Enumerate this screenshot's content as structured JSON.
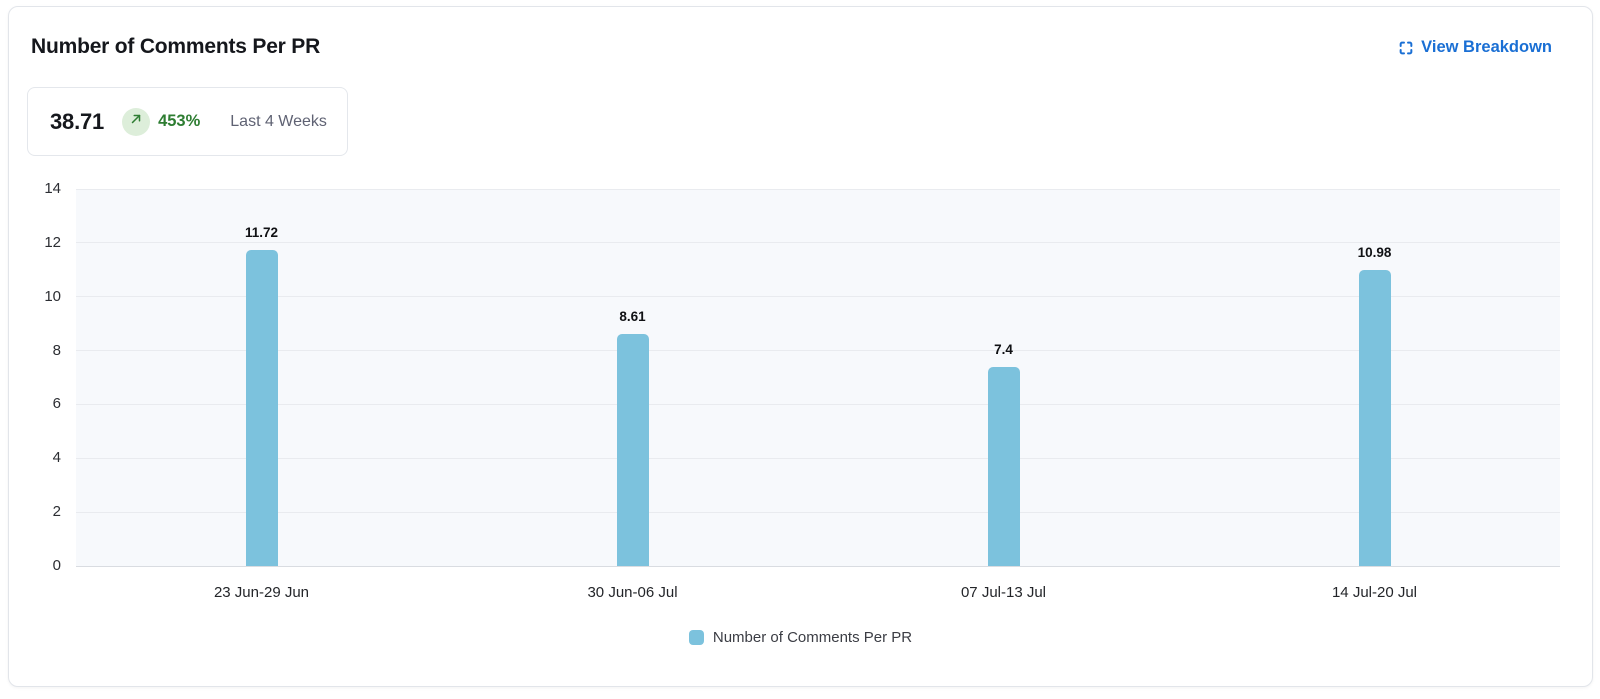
{
  "card": {
    "title": "Number of Comments Per PR",
    "view_breakdown_label": "View Breakdown",
    "view_breakdown_icon": "expand-icon",
    "stat": {
      "value": "38.71",
      "trend_icon": "arrow-up-right-icon",
      "change": "453%",
      "period": "Last 4 Weeks"
    }
  },
  "colors": {
    "accent_blue": "#1a6fd4",
    "bar_fill": "#7cc2dd",
    "positive_green": "#2e7d32",
    "trend_badge_bg": "#ddeeda",
    "plot_bg": "#f7f9fc",
    "gridline": "#e9ebef",
    "axis_line": "#d9dce1",
    "muted_text": "#5f6273"
  },
  "chart_data": {
    "type": "bar",
    "title": "Number of Comments Per PR",
    "categories": [
      "23 Jun-29 Jun",
      "30 Jun-06 Jul",
      "07 Jul-13 Jul",
      "14 Jul-20 Jul"
    ],
    "values": [
      11.72,
      8.61,
      7.4,
      10.98
    ],
    "value_labels": [
      "11.72",
      "8.61",
      "7.4",
      "10.98"
    ],
    "xlabel": "",
    "ylabel": "",
    "ylim": [
      0,
      14
    ],
    "y_ticks": [
      0,
      2,
      4,
      6,
      8,
      10,
      12,
      14
    ],
    "grid": true,
    "legend": {
      "position": "bottom",
      "entries": [
        "Number of Comments Per PR"
      ]
    }
  }
}
